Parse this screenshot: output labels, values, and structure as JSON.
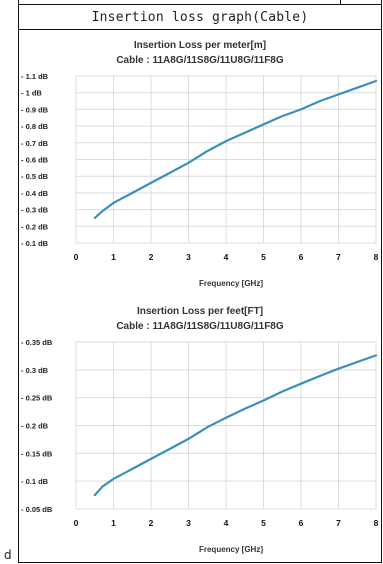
{
  "header": {
    "title": "Insertion loss graph(Cable)"
  },
  "side_label": "d",
  "chart_data": [
    {
      "type": "line",
      "title": "Insertion Loss per meter[m]",
      "subtitle": "Cable : 11A8G/11S8G/11U8G/11F8G",
      "xlabel": "Frequency [GHz]",
      "ylabel": "",
      "xlim": [
        0,
        8
      ],
      "ylim": [
        0.1,
        1.1
      ],
      "x_ticks": [
        "0",
        "1",
        "2",
        "3",
        "4",
        "5",
        "6",
        "7",
        "8"
      ],
      "y_ticks": [
        "- 1.1 dB",
        "- 1 dB",
        "- 0.9 dB",
        "- 0.8 dB",
        "- 0.7 dB",
        "- 0.6 dB",
        "- 0.5 dB",
        "- 0.4 dB",
        "- 0.3 dB",
        "- 0.2 dB",
        "- 0.1 dB"
      ],
      "y_tick_values": [
        1.1,
        1.0,
        0.9,
        0.8,
        0.7,
        0.6,
        0.5,
        0.4,
        0.3,
        0.2,
        0.1
      ],
      "grid": true,
      "line_color": "#3a8fbf",
      "series": [
        {
          "x": [
            0.5,
            0.7,
            1,
            1.5,
            2,
            2.5,
            3,
            3.5,
            4,
            4.5,
            5,
            5.5,
            6,
            6.5,
            7,
            7.5,
            8
          ],
          "y": [
            0.25,
            0.29,
            0.34,
            0.4,
            0.46,
            0.52,
            0.58,
            0.65,
            0.71,
            0.76,
            0.81,
            0.86,
            0.9,
            0.95,
            0.99,
            1.03,
            1.07
          ]
        }
      ]
    },
    {
      "type": "line",
      "title": "Insertion Loss per feet[FT]",
      "subtitle": "Cable : 11A8G/11S8G/11U8G/11F8G",
      "xlabel": "Frequency [GHz]",
      "ylabel": "",
      "xlim": [
        0,
        8
      ],
      "ylim": [
        0.05,
        0.35
      ],
      "x_ticks": [
        "0",
        "1",
        "2",
        "3",
        "4",
        "5",
        "6",
        "7",
        "8"
      ],
      "y_ticks": [
        "- 0.35 dB",
        "- 0.3 dB",
        "- 0.25 dB",
        "- 0.2 dB",
        "- 0.15 dB",
        "- 0.1 dB",
        "- 0.05 dB"
      ],
      "y_tick_values": [
        0.35,
        0.3,
        0.25,
        0.2,
        0.15,
        0.1,
        0.05
      ],
      "grid": true,
      "line_color": "#3a8fbf",
      "series": [
        {
          "x": [
            0.5,
            0.7,
            1,
            1.5,
            2,
            2.5,
            3,
            3.5,
            4,
            4.5,
            5,
            5.5,
            6,
            6.5,
            7,
            7.5,
            8
          ],
          "y": [
            0.075,
            0.09,
            0.104,
            0.122,
            0.14,
            0.158,
            0.176,
            0.197,
            0.214,
            0.23,
            0.245,
            0.261,
            0.275,
            0.289,
            0.302,
            0.314,
            0.326
          ]
        }
      ]
    }
  ]
}
